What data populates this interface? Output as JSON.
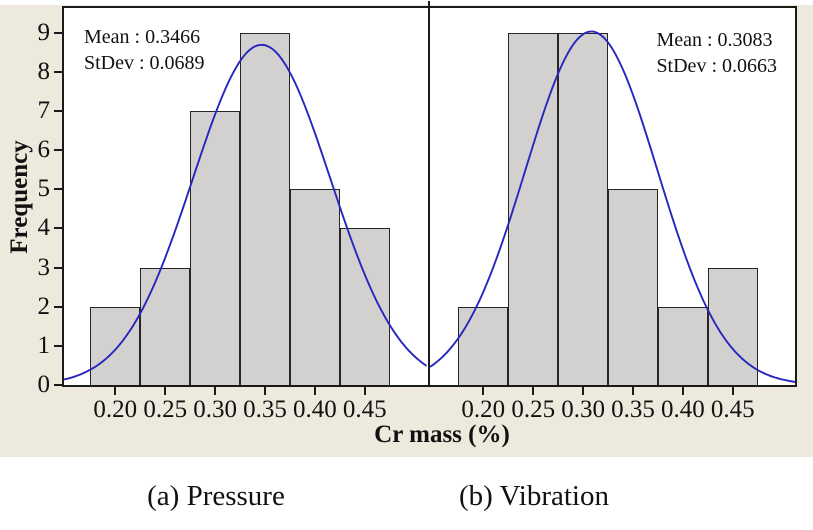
{
  "colors": {
    "figure_bg": "#ede9dd",
    "plot_bg": "#ffffff",
    "bar_fill": "#d2d1cf",
    "bar_stroke": "#262626",
    "curve": "#2626bf",
    "frame": "#1a1a1a",
    "text": "#111111"
  },
  "chart_data": {
    "type": "histogram",
    "subtype": "histogram-with-normal-fit-curve",
    "xlabel": "Cr mass (%)",
    "ylabel": "Frequency",
    "y_ticks": [
      "0",
      "1",
      "2",
      "3",
      "4",
      "5",
      "6",
      "7",
      "8",
      "9"
    ],
    "y_tick_values": [
      0,
      1,
      2,
      3,
      4,
      5,
      6,
      7,
      8,
      9
    ],
    "x_ticks": [
      "0.20",
      "0.25",
      "0.30",
      "0.35",
      "0.40",
      "0.45"
    ],
    "x_tick_values": [
      0.2,
      0.25,
      0.3,
      0.35,
      0.4,
      0.45
    ],
    "ylim": [
      0,
      9.6
    ],
    "xlim": [
      0.147,
      0.514
    ],
    "bin_width": 0.05,
    "grid": false,
    "legend": false,
    "panels": [
      {
        "id": "a",
        "caption": "(a) Pressure",
        "mean": 0.3466,
        "stdev": 0.0689,
        "n": 30,
        "mean_label": "Mean : 0.3466",
        "stdev_label": "StDev : 0.0689",
        "bin_centers": [
          0.2,
          0.25,
          0.3,
          0.35,
          0.4,
          0.45
        ],
        "frequencies": [
          2,
          3,
          7,
          9,
          5,
          4
        ]
      },
      {
        "id": "b",
        "caption": "(b) Vibration",
        "mean": 0.3083,
        "stdev": 0.0663,
        "n": 30,
        "mean_label": "Mean : 0.3083",
        "stdev_label": "StDev : 0.0663",
        "bin_centers": [
          0.2,
          0.25,
          0.3,
          0.35,
          0.4,
          0.45
        ],
        "frequencies": [
          2,
          9,
          9,
          5,
          2,
          3
        ]
      }
    ]
  }
}
